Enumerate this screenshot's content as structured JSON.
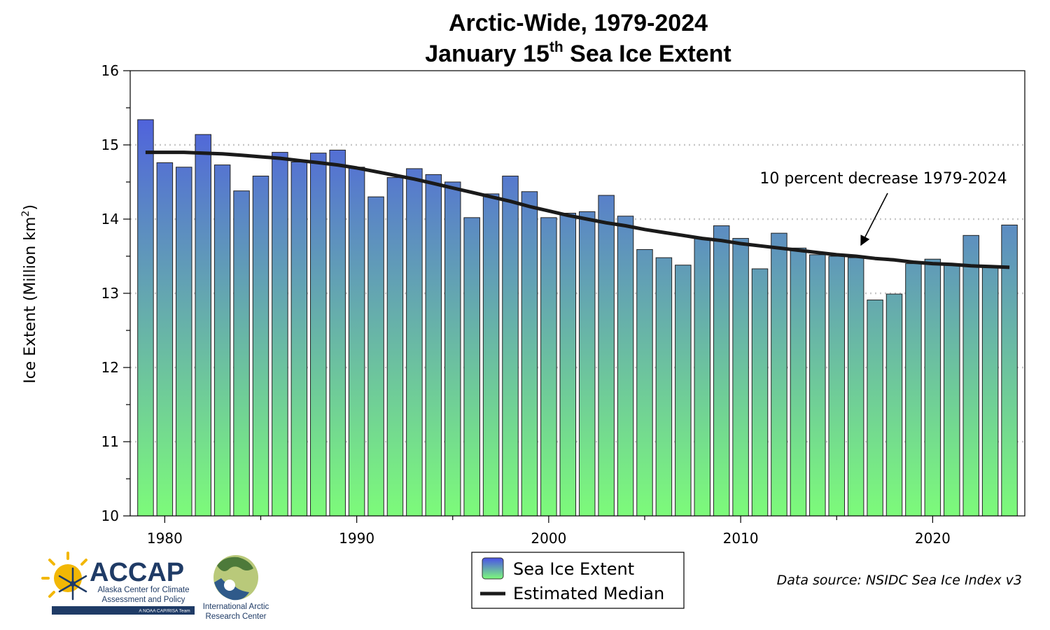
{
  "title": {
    "line1": "Arctic-Wide, 1979-2024",
    "line2_main": "January 15",
    "line2_sup": "th",
    "line2_rest": " Sea Ice Extent"
  },
  "annotation": "10 percent decrease 1979-2024",
  "source": "Data source: NSIDC Sea Ice Index v3",
  "legend": {
    "bar_label": "Sea Ice Extent",
    "line_label": "Estimated Median"
  },
  "logos": {
    "accap_name": "ACCAP",
    "accap_line1": "Alaska Center for Climate",
    "accap_line2": "Assessment and Policy",
    "accap_team": "A NOAA CAP/RISA Team",
    "iarc_line1": "International Arctic",
    "iarc_line2": "Research Center"
  },
  "colors": {
    "bar_top": "#4a50e8",
    "bar_bottom": "#7dfb7a",
    "median_line": "#1a1a1a",
    "grid": "#c8c8c8",
    "logo_navy": "#1f3b66",
    "logo_sun": "#f2b705"
  },
  "chart_data": {
    "type": "bar",
    "ylabel": "Ice Extent (Million km",
    "ylabel_sup": "2",
    "ylabel_end": ")",
    "ylim": [
      10,
      16
    ],
    "xlim": [
      1978.2,
      2024.8
    ],
    "yticks": [
      10,
      11,
      12,
      13,
      14,
      15,
      16
    ],
    "xticks": [
      1980,
      1990,
      2000,
      2010,
      2020
    ],
    "grid": "horizontal dotted",
    "legend_position": "bottom-center",
    "series": [
      {
        "name": "Sea Ice Extent",
        "type": "bar",
        "x": [
          1979,
          1980,
          1981,
          1982,
          1983,
          1984,
          1985,
          1986,
          1987,
          1988,
          1989,
          1990,
          1991,
          1992,
          1993,
          1994,
          1995,
          1996,
          1997,
          1998,
          1999,
          2000,
          2001,
          2002,
          2003,
          2004,
          2005,
          2006,
          2007,
          2008,
          2009,
          2010,
          2011,
          2012,
          2013,
          2014,
          2015,
          2016,
          2017,
          2018,
          2019,
          2020,
          2021,
          2022,
          2023,
          2024
        ],
        "values": [
          15.34,
          14.76,
          14.7,
          15.14,
          14.73,
          14.38,
          14.58,
          14.9,
          14.77,
          14.89,
          14.93,
          14.7,
          14.3,
          14.56,
          14.68,
          14.6,
          14.5,
          14.02,
          14.34,
          14.58,
          14.37,
          14.02,
          14.08,
          14.1,
          14.32,
          14.04,
          13.59,
          13.48,
          13.38,
          13.74,
          13.91,
          13.74,
          13.33,
          13.81,
          13.61,
          13.52,
          13.5,
          13.48,
          12.91,
          12.99,
          13.4,
          13.46,
          13.39,
          13.78,
          13.36,
          13.92
        ]
      },
      {
        "name": "Estimated Median",
        "type": "line",
        "x": [
          1979,
          1980,
          1981,
          1982,
          1983,
          1984,
          1985,
          1986,
          1987,
          1988,
          1989,
          1990,
          1991,
          1992,
          1993,
          1994,
          1995,
          1996,
          1997,
          1998,
          1999,
          2000,
          2001,
          2002,
          2003,
          2004,
          2005,
          2006,
          2007,
          2008,
          2009,
          2010,
          2011,
          2012,
          2013,
          2014,
          2015,
          2016,
          2017,
          2018,
          2019,
          2020,
          2021,
          2022,
          2023,
          2024
        ],
        "values": [
          14.9,
          14.9,
          14.9,
          14.89,
          14.88,
          14.86,
          14.84,
          14.82,
          14.79,
          14.76,
          14.73,
          14.69,
          14.64,
          14.59,
          14.54,
          14.48,
          14.42,
          14.36,
          14.3,
          14.24,
          14.17,
          14.11,
          14.05,
          14.0,
          13.95,
          13.91,
          13.86,
          13.82,
          13.78,
          13.74,
          13.71,
          13.67,
          13.64,
          13.61,
          13.58,
          13.55,
          13.52,
          13.5,
          13.47,
          13.45,
          13.42,
          13.4,
          13.39,
          13.37,
          13.36,
          13.35
        ]
      }
    ]
  }
}
